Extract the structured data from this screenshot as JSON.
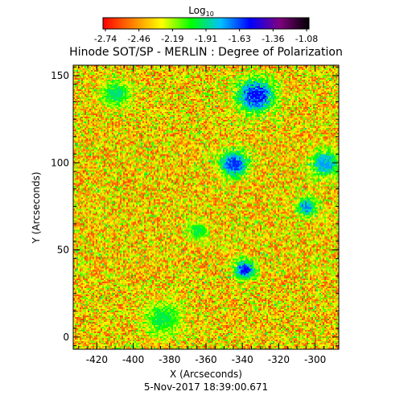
{
  "chart_data": {
    "type": "heatmap",
    "title": "Hinode SOT/SP - MERLIN : Degree of Polarization",
    "xlabel": "X (Arcseconds)",
    "ylabel": "Y (Arcseconds)",
    "timestamp": "5-Nov-2017 18:39:00.671",
    "colorbar": {
      "label_base": "Log",
      "label_sub": "10",
      "ticks": [
        "-2.74",
        "-2.46",
        "-2.19",
        "-1.91",
        "-1.63",
        "-1.36",
        "-1.08"
      ],
      "range": [
        -2.74,
        -1.08
      ],
      "colormap": [
        "#ff0000",
        "#ff8000",
        "#ffff00",
        "#00ff00",
        "#00c0ff",
        "#0000ff",
        "#800080",
        "#000000"
      ]
    },
    "xlim": [
      -433,
      -287
    ],
    "ylim": [
      -7,
      156
    ],
    "x_ticks": [
      "-420",
      "-400",
      "-380",
      "-360",
      "-340",
      "-320",
      "-300"
    ],
    "y_ticks": [
      "0",
      "50",
      "100",
      "150"
    ],
    "grid": false,
    "features": [
      {
        "region": "network patch",
        "x": -339,
        "y": 39,
        "level": -1.55
      },
      {
        "region": "network patch",
        "x": -345,
        "y": 100,
        "level": -1.6
      },
      {
        "region": "network patch",
        "x": -333,
        "y": 139,
        "level": -1.55
      },
      {
        "region": "network patch",
        "x": -305,
        "y": 75,
        "level": -1.7
      },
      {
        "region": "network patch",
        "x": -295,
        "y": 100,
        "level": -1.75
      },
      {
        "region": "network patch",
        "x": -384,
        "y": 11,
        "level": -1.95
      },
      {
        "region": "network patch",
        "x": -365,
        "y": 61,
        "level": -1.95
      },
      {
        "region": "network patch",
        "x": -410,
        "y": 140,
        "level": -1.9
      }
    ]
  }
}
